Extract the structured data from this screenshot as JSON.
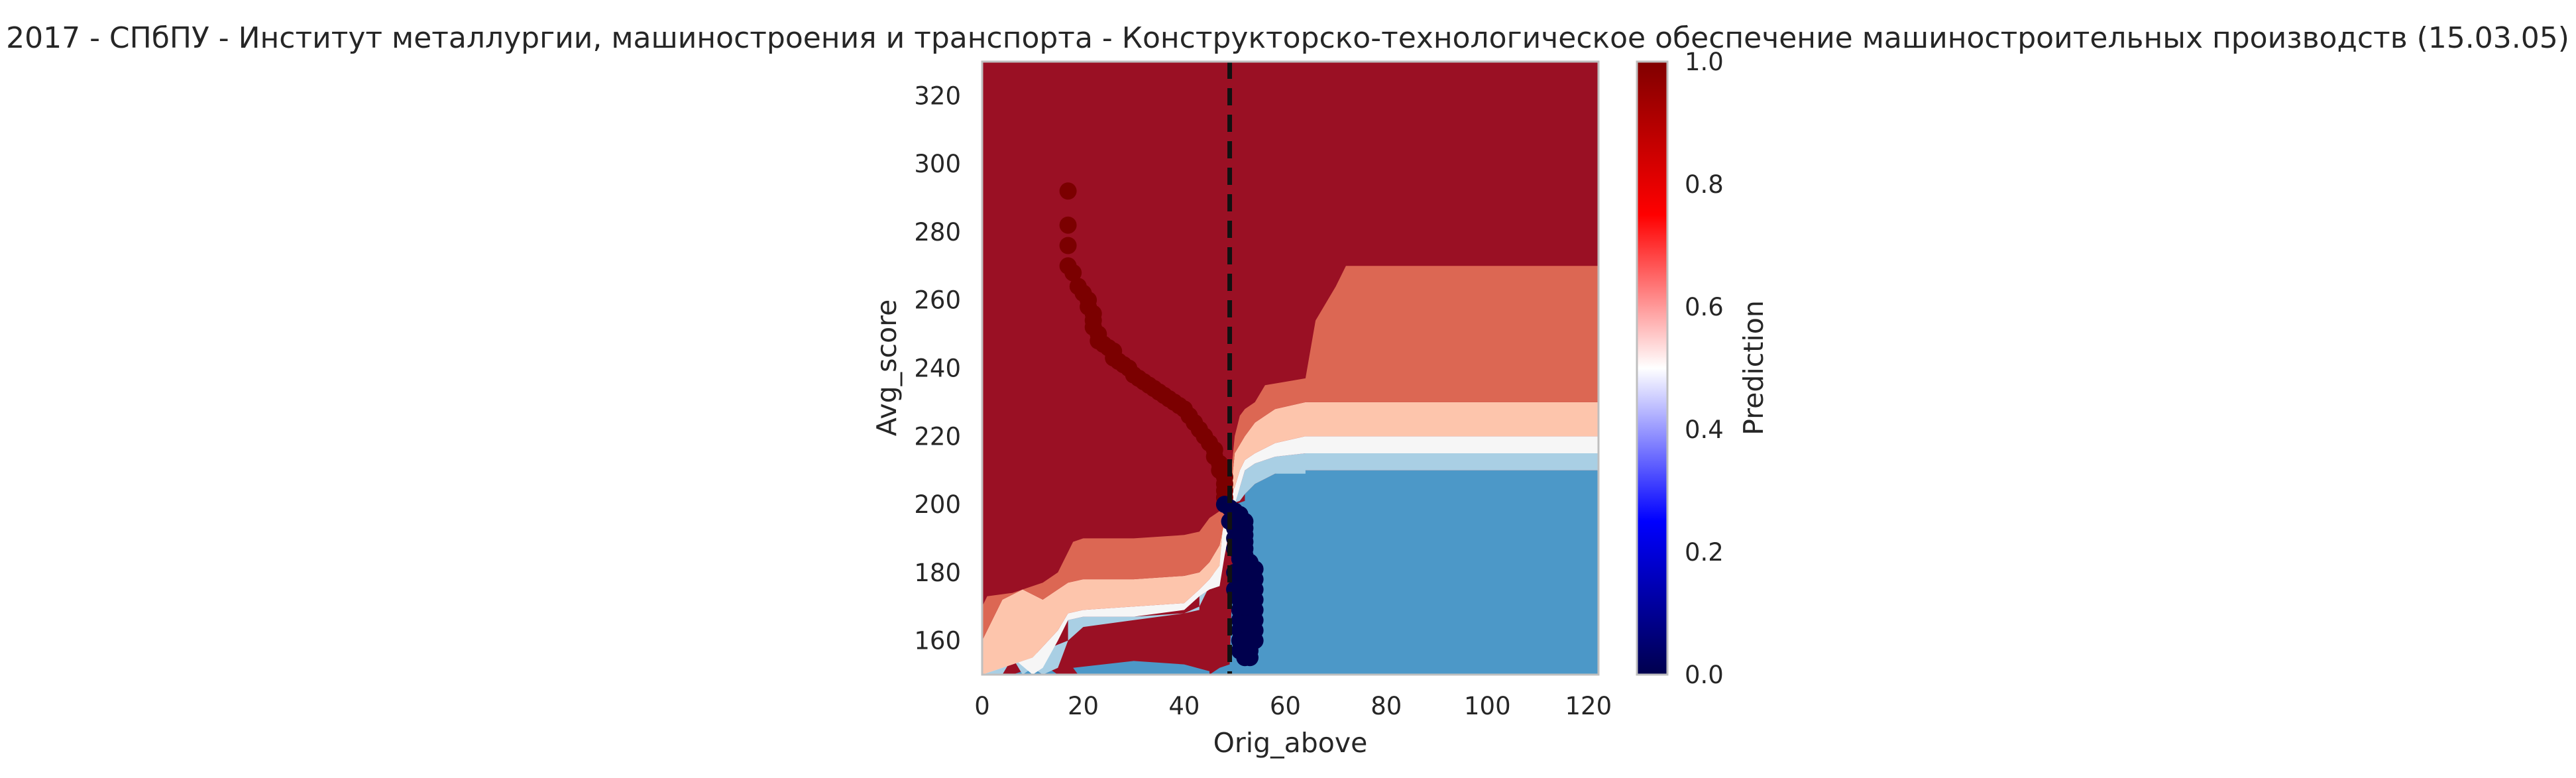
{
  "chart_data": {
    "type": "heatmap",
    "title": "2017 - СПбПУ - Институт металлургии, машиностроения и транспорта - Конструкторско-технологическое обеспечение машиностроительных производств (15.03.05)",
    "xlabel": "Orig_above",
    "ylabel": "Avg_score",
    "xlim": [
      0,
      122
    ],
    "ylim": [
      150,
      330
    ],
    "xticks": [
      0,
      20,
      40,
      60,
      80,
      100,
      120
    ],
    "yticks": [
      160,
      180,
      200,
      220,
      240,
      260,
      280,
      300,
      320
    ],
    "grid": false,
    "colorbar": {
      "label": "Prediction",
      "colormap": "seismic",
      "range": [
        0,
        1
      ],
      "ticks": [
        "0.0",
        "0.2",
        "0.4",
        "0.6",
        "0.8",
        "1.0"
      ]
    },
    "threshold_line": {
      "x": 49,
      "style": "dashed",
      "color": "#111111"
    },
    "contour_levels": {
      "0.05": "#1a5596",
      "0.15": "#4c98c8",
      "0.3": "#a9cfe4",
      "0.5": "#f6f6f6",
      "0.65": "#fdc5ac",
      "0.8": "#dc6753",
      "0.95": "#9a1024"
    },
    "contour_regions": [
      {
        "level": 0.15,
        "x": [
          0,
          15,
          18,
          19,
          20,
          30,
          40,
          45,
          47,
          49,
          50,
          52,
          52,
          54,
          58,
          64,
          122,
          122,
          49,
          49,
          45,
          45,
          40,
          30,
          18,
          15,
          13,
          12,
          10,
          6,
          0
        ],
        "y": [
          150,
          150,
          152,
          150,
          150,
          150,
          150,
          150,
          152,
          153,
          200,
          201,
          203,
          206,
          209,
          210,
          210,
          150,
          150,
          150,
          150,
          151,
          153,
          154,
          152,
          150,
          152,
          150,
          152,
          150,
          150
        ]
      },
      {
        "level": 0.3,
        "x": [
          0,
          17,
          17,
          20,
          30,
          40,
          43,
          43,
          45,
          47,
          49,
          51,
          52,
          54,
          58,
          64,
          122,
          122,
          64,
          64,
          58,
          54,
          52,
          51,
          49,
          47,
          45,
          43,
          40,
          30,
          20,
          17,
          16,
          15,
          12,
          10,
          8,
          6,
          4,
          0
        ],
        "y": [
          150,
          160,
          166,
          167,
          167,
          168,
          169,
          173,
          175,
          176,
          200,
          205,
          210,
          212,
          214,
          215,
          215,
          210,
          210,
          209,
          209,
          206,
          203,
          201,
          200,
          185,
          176,
          170,
          168,
          166,
          164,
          160,
          156,
          152,
          150,
          152,
          150,
          155,
          150,
          150
        ]
      },
      {
        "level": 0.5,
        "x": [
          0,
          10,
          15,
          17,
          20,
          30,
          40,
          43,
          45,
          47,
          48,
          50,
          51,
          52,
          54,
          58,
          64,
          122,
          122,
          64,
          58,
          54,
          52,
          51,
          50,
          48,
          47,
          45,
          43,
          40,
          30,
          20,
          17,
          15,
          12,
          10,
          6,
          0
        ],
        "y": [
          150,
          155,
          163,
          168,
          169,
          170,
          171,
          175,
          178,
          182,
          200,
          205,
          210,
          213,
          215,
          218,
          220,
          220,
          215,
          215,
          214,
          212,
          210,
          205,
          200,
          185,
          176,
          175,
          173,
          169,
          167,
          167,
          166,
          160,
          152,
          150,
          155,
          150
        ]
      },
      {
        "level": 0.65,
        "x": [
          0,
          4,
          8,
          12,
          15,
          17,
          20,
          30,
          40,
          43,
          45,
          47,
          48,
          49,
          50,
          52,
          54,
          58,
          64,
          122,
          122,
          64,
          58,
          54,
          52,
          51,
          50,
          48,
          47,
          45,
          43,
          40,
          30,
          20,
          17,
          15,
          10,
          0
        ],
        "y": [
          160,
          172,
          175,
          172,
          175,
          177,
          178,
          178,
          179,
          180,
          183,
          188,
          195,
          200,
          215,
          220,
          224,
          228,
          230,
          230,
          220,
          220,
          218,
          215,
          213,
          210,
          205,
          200,
          182,
          178,
          175,
          171,
          170,
          169,
          168,
          163,
          155,
          150
        ]
      },
      {
        "level": 0.8,
        "x": [
          0,
          1,
          6,
          12,
          15,
          17,
          18,
          20,
          30,
          40,
          43,
          45,
          47,
          48,
          49,
          50,
          51,
          52,
          54,
          56,
          60,
          64,
          66,
          70,
          72,
          122,
          122,
          64,
          58,
          54,
          52,
          50,
          49,
          48,
          47,
          45,
          43,
          40,
          30,
          20,
          17,
          15,
          12,
          8,
          4,
          0
        ],
        "y": [
          170,
          173,
          174,
          177,
          180,
          186,
          189,
          190,
          190,
          191,
          192,
          196,
          198,
          200,
          205,
          220,
          226,
          228,
          230,
          235,
          236,
          237,
          254,
          264,
          270,
          270,
          230,
          230,
          228,
          224,
          220,
          215,
          200,
          195,
          188,
          183,
          180,
          179,
          178,
          178,
          177,
          175,
          172,
          175,
          172,
          160
        ]
      }
    ],
    "series": [
      {
        "name": "",
        "color": "#7b0000",
        "points": [
          [
            17,
            292
          ],
          [
            17,
            282
          ],
          [
            17,
            276
          ],
          [
            17,
            270
          ],
          [
            18,
            268
          ],
          [
            19,
            264
          ],
          [
            20,
            262
          ],
          [
            21,
            260
          ],
          [
            21,
            258
          ],
          [
            22,
            256
          ],
          [
            22,
            254
          ],
          [
            22,
            252
          ],
          [
            23,
            250
          ],
          [
            23,
            248
          ],
          [
            24,
            247
          ],
          [
            25,
            246
          ],
          [
            26,
            245
          ],
          [
            26,
            243
          ],
          [
            27,
            242
          ],
          [
            28,
            241
          ],
          [
            29,
            240
          ],
          [
            30,
            238
          ],
          [
            31,
            237
          ],
          [
            32,
            236
          ],
          [
            33,
            235
          ],
          [
            34,
            234
          ],
          [
            35,
            233
          ],
          [
            36,
            232
          ],
          [
            37,
            231
          ],
          [
            38,
            230
          ],
          [
            39,
            229
          ],
          [
            40,
            228
          ],
          [
            41,
            226
          ],
          [
            42,
            224
          ],
          [
            43,
            222
          ],
          [
            44,
            220
          ],
          [
            45,
            218
          ],
          [
            46,
            216
          ],
          [
            46,
            214
          ],
          [
            47,
            212
          ],
          [
            47,
            210
          ],
          [
            48,
            208
          ],
          [
            48,
            206
          ],
          [
            48,
            204
          ],
          [
            48,
            202
          ]
        ]
      },
      {
        "name": "",
        "color": "#00004d",
        "points": [
          [
            48,
            200
          ],
          [
            49,
            199
          ],
          [
            50,
            198
          ],
          [
            51,
            197
          ],
          [
            51,
            196
          ],
          [
            52,
            195
          ],
          [
            52,
            193
          ],
          [
            52,
            191
          ],
          [
            52,
            189
          ],
          [
            52,
            187
          ],
          [
            52,
            185
          ],
          [
            53,
            183
          ],
          [
            53,
            181
          ],
          [
            53,
            179
          ],
          [
            53,
            177
          ],
          [
            53,
            175
          ],
          [
            53,
            173
          ],
          [
            53,
            171
          ],
          [
            53,
            169
          ],
          [
            53,
            167
          ],
          [
            53,
            165
          ],
          [
            53,
            163
          ],
          [
            53,
            161
          ],
          [
            53,
            159
          ],
          [
            53,
            157
          ],
          [
            53,
            155
          ],
          [
            54,
            181
          ],
          [
            54,
            178
          ],
          [
            54,
            175
          ],
          [
            54,
            172
          ],
          [
            54,
            169
          ],
          [
            54,
            166
          ],
          [
            54,
            163
          ],
          [
            54,
            160
          ],
          [
            49,
            195
          ],
          [
            50,
            193
          ],
          [
            50,
            190
          ],
          [
            50,
            187
          ],
          [
            51,
            184
          ],
          [
            51,
            181
          ],
          [
            51,
            178
          ],
          [
            51,
            175
          ],
          [
            51,
            172
          ],
          [
            51,
            169
          ],
          [
            51,
            166
          ],
          [
            51,
            163
          ],
          [
            51,
            160
          ],
          [
            51,
            157
          ],
          [
            52,
            170
          ],
          [
            52,
            165
          ],
          [
            52,
            160
          ],
          [
            52,
            155
          ],
          [
            50,
            180
          ],
          [
            50,
            175
          ]
        ]
      }
    ]
  }
}
